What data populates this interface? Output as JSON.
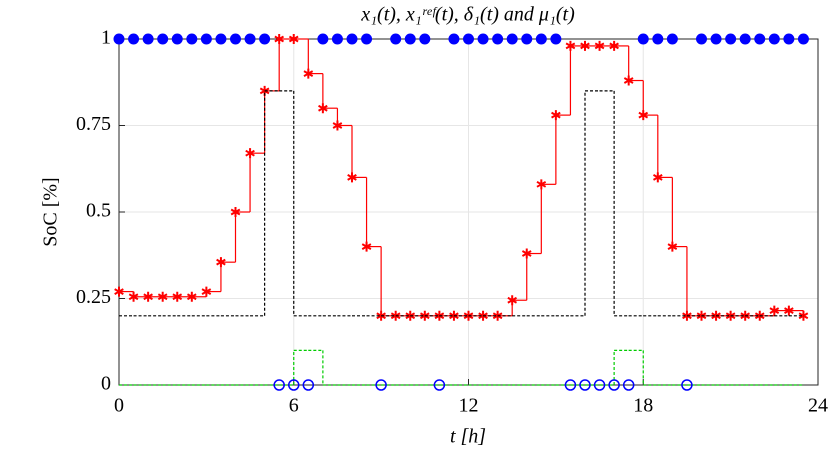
{
  "chart_data": {
    "type": "stairs",
    "title": "x₁(t), x₁ʳᵉᶠ(t), δ₁(t) and μ₁(t)",
    "x_label": "t [h]",
    "y_label": "SoC [%]",
    "x": [
      0,
      0.5,
      1,
      1.5,
      2,
      2.5,
      3,
      3.5,
      4,
      4.5,
      5,
      5.5,
      6,
      6.5,
      7,
      7.5,
      8,
      8.5,
      9,
      9.5,
      10,
      10.5,
      11,
      11.5,
      12,
      12.5,
      13,
      13.5,
      14,
      14.5,
      15,
      15.5,
      16,
      16.5,
      17,
      17.5,
      18,
      18.5,
      19,
      19.5,
      20,
      20.5,
      21,
      21.5,
      22,
      22.5,
      23,
      23.5
    ],
    "series": [
      {
        "color": "#ff0000",
        "linestyle": "solid",
        "marker": "asterisk",
        "values": [
          0.27,
          0.255,
          0.255,
          0.255,
          0.255,
          0.255,
          0.27,
          0.355,
          0.5,
          0.67,
          0.85,
          1,
          1,
          0.9,
          0.8,
          0.75,
          0.6,
          0.4,
          0.2,
          0.2,
          0.2,
          0.2,
          0.2,
          0.2,
          0.2,
          0.2,
          0.2,
          0.245,
          0.38,
          0.58,
          0.78,
          0.98,
          0.98,
          0.98,
          0.98,
          0.88,
          0.78,
          0.6,
          0.4,
          0.2,
          0.2,
          0.2,
          0.2,
          0.2,
          0.2,
          0.215,
          0.215,
          0.2
        ]
      },
      {
        "color": "#000000",
        "linestyle": "dotted",
        "marker": "none",
        "values": [
          0.2,
          0.2,
          0.2,
          0.2,
          0.2,
          0.2,
          0.2,
          0.2,
          0.2,
          0.2,
          0.85,
          0.85,
          0.2,
          0.2,
          0.2,
          0.2,
          0.2,
          0.2,
          0.2,
          0.2,
          0.2,
          0.2,
          0.2,
          0.2,
          0.2,
          0.2,
          0.2,
          0.2,
          0.2,
          0.2,
          0.2,
          0.2,
          0.85,
          0.85,
          0.2,
          0.2,
          0.2,
          0.2,
          0.2,
          0.2,
          0.2,
          0.2,
          0.2,
          0.2,
          0.2,
          0.2,
          0.2,
          0.2
        ]
      },
      {
        "color": "#00cc00",
        "linestyle": "dotted",
        "marker": "none",
        "values": [
          0,
          0,
          0,
          0,
          0,
          0,
          0,
          0,
          0,
          0,
          0,
          0,
          0.1,
          0.1,
          0,
          0,
          0,
          0,
          0,
          0,
          0,
          0,
          0,
          0,
          0,
          0,
          0,
          0,
          0,
          0,
          0,
          0,
          0,
          0,
          0.1,
          0.1,
          0,
          0,
          0,
          0,
          0,
          0,
          0,
          0,
          0,
          0,
          0,
          0
        ]
      },
      {
        "color": "#0000ff",
        "linestyle": "none",
        "marker": "circle-filled",
        "values": [
          1,
          1,
          1,
          1,
          1,
          1,
          1,
          1,
          1,
          1,
          1,
          null,
          null,
          null,
          1,
          1,
          1,
          1,
          null,
          1,
          1,
          1,
          null,
          1,
          1,
          1,
          1,
          1,
          1,
          1,
          1,
          null,
          null,
          null,
          null,
          null,
          1,
          1,
          1,
          null,
          1,
          1,
          1,
          1,
          1,
          1,
          1,
          1
        ]
      },
      {
        "color": "#0000ff",
        "linestyle": "none",
        "marker": "circle-open",
        "values": [
          null,
          null,
          null,
          null,
          null,
          null,
          null,
          null,
          null,
          null,
          null,
          0,
          0,
          0,
          null,
          null,
          null,
          null,
          0,
          null,
          null,
          null,
          0,
          null,
          null,
          null,
          null,
          null,
          null,
          null,
          null,
          0,
          0,
          0,
          0,
          0,
          null,
          null,
          null,
          0,
          null,
          null,
          null,
          null,
          null,
          null,
          null,
          null
        ]
      }
    ],
    "xlim": [
      0,
      24
    ],
    "xticks": [
      0,
      6,
      12,
      18,
      24
    ],
    "ylim": [
      0,
      1
    ],
    "yticks": [
      0,
      0.25,
      0.5,
      0.75,
      1
    ],
    "grid": true
  }
}
